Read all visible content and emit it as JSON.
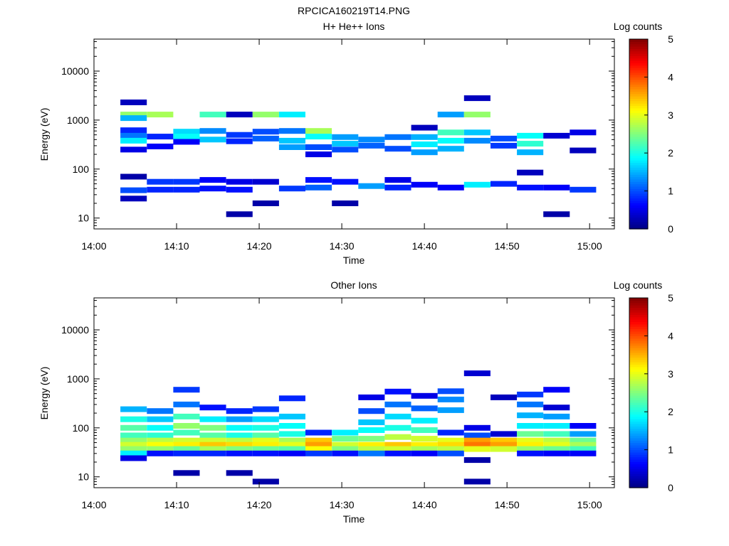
{
  "page_title": "RPCICA160219T14.PNG",
  "chart_data": [
    {
      "type": "heatmap",
      "title": "H+ He++ Ions",
      "xlabel": "Time",
      "ylabel": "Energy (eV)",
      "colorbar_label": "Log counts",
      "x_ticks": [
        "14:00",
        "14:10",
        "14:20",
        "14:30",
        "14:40",
        "14:50",
        "15:00"
      ],
      "y_ticks": [
        "10",
        "100",
        "1000",
        "10000"
      ],
      "colorbar_ticks": [
        "0",
        "1",
        "2",
        "3",
        "4",
        "5"
      ],
      "x_range_minutes": [
        0,
        63
      ],
      "y_scale": "log",
      "y_range": [
        6,
        45000
      ],
      "colorbar_range": [
        0,
        5
      ],
      "grid": false,
      "legend_position": "colorbar-right",
      "cells": [
        {
          "t": 3.2,
          "e": 2300,
          "v": 0.3
        },
        {
          "t": 3.2,
          "e": 1300,
          "v": 2.6
        },
        {
          "t": 3.2,
          "e": 1100,
          "v": 1.5
        },
        {
          "t": 3.2,
          "e": 620,
          "v": 0.8
        },
        {
          "t": 3.2,
          "e": 480,
          "v": 1.2
        },
        {
          "t": 3.2,
          "e": 380,
          "v": 1.8
        },
        {
          "t": 3.2,
          "e": 250,
          "v": 0.5
        },
        {
          "t": 3.2,
          "e": 70,
          "v": 0.2
        },
        {
          "t": 3.2,
          "e": 37,
          "v": 1.0
        },
        {
          "t": 3.2,
          "e": 25,
          "v": 0.3
        },
        {
          "t": 6.4,
          "e": 1300,
          "v": 2.7
        },
        {
          "t": 6.4,
          "e": 460,
          "v": 0.8
        },
        {
          "t": 6.4,
          "e": 290,
          "v": 0.6
        },
        {
          "t": 6.4,
          "e": 55,
          "v": 0.9
        },
        {
          "t": 6.4,
          "e": 38,
          "v": 0.8
        },
        {
          "t": 9.6,
          "e": 580,
          "v": 1.7
        },
        {
          "t": 9.6,
          "e": 460,
          "v": 1.9
        },
        {
          "t": 9.6,
          "e": 360,
          "v": 0.6
        },
        {
          "t": 9.6,
          "e": 55,
          "v": 0.9
        },
        {
          "t": 9.6,
          "e": 38,
          "v": 0.8
        },
        {
          "t": 12.8,
          "e": 1300,
          "v": 2.2
        },
        {
          "t": 12.8,
          "e": 600,
          "v": 1.3
        },
        {
          "t": 12.8,
          "e": 400,
          "v": 1.6
        },
        {
          "t": 12.8,
          "e": 60,
          "v": 0.6
        },
        {
          "t": 12.8,
          "e": 40,
          "v": 0.7
        },
        {
          "t": 16.0,
          "e": 1300,
          "v": 0.3
        },
        {
          "t": 16.0,
          "e": 500,
          "v": 0.9
        },
        {
          "t": 16.0,
          "e": 370,
          "v": 0.8
        },
        {
          "t": 16.0,
          "e": 55,
          "v": 0.5
        },
        {
          "t": 16.0,
          "e": 38,
          "v": 0.7
        },
        {
          "t": 16.0,
          "e": 12,
          "v": 0.2
        },
        {
          "t": 19.2,
          "e": 1300,
          "v": 2.6
        },
        {
          "t": 19.2,
          "e": 580,
          "v": 1.0
        },
        {
          "t": 19.2,
          "e": 420,
          "v": 1.1
        },
        {
          "t": 19.2,
          "e": 55,
          "v": 0.4
        },
        {
          "t": 19.2,
          "e": 20,
          "v": 0.2
        },
        {
          "t": 22.4,
          "e": 1300,
          "v": 1.8
        },
        {
          "t": 22.4,
          "e": 600,
          "v": 1.2
        },
        {
          "t": 22.4,
          "e": 380,
          "v": 1.6
        },
        {
          "t": 22.4,
          "e": 280,
          "v": 1.4
        },
        {
          "t": 22.4,
          "e": 40,
          "v": 0.9
        },
        {
          "t": 25.6,
          "e": 600,
          "v": 2.7
        },
        {
          "t": 25.6,
          "e": 460,
          "v": 1.9
        },
        {
          "t": 25.6,
          "e": 280,
          "v": 1.0
        },
        {
          "t": 25.6,
          "e": 200,
          "v": 0.5
        },
        {
          "t": 25.6,
          "e": 60,
          "v": 0.7
        },
        {
          "t": 25.6,
          "e": 42,
          "v": 1.1
        },
        {
          "t": 28.8,
          "e": 450,
          "v": 1.4
        },
        {
          "t": 28.8,
          "e": 330,
          "v": 1.6
        },
        {
          "t": 28.8,
          "e": 250,
          "v": 1.0
        },
        {
          "t": 28.8,
          "e": 55,
          "v": 0.7
        },
        {
          "t": 28.8,
          "e": 20,
          "v": 0.2
        },
        {
          "t": 32.0,
          "e": 400,
          "v": 1.3
        },
        {
          "t": 32.0,
          "e": 300,
          "v": 1.1
        },
        {
          "t": 32.0,
          "e": 45,
          "v": 1.4
        },
        {
          "t": 35.2,
          "e": 450,
          "v": 1.2
        },
        {
          "t": 35.2,
          "e": 260,
          "v": 1.0
        },
        {
          "t": 35.2,
          "e": 60,
          "v": 0.5
        },
        {
          "t": 35.2,
          "e": 42,
          "v": 0.8
        },
        {
          "t": 38.4,
          "e": 700,
          "v": 0.3
        },
        {
          "t": 38.4,
          "e": 450,
          "v": 1.5
        },
        {
          "t": 38.4,
          "e": 320,
          "v": 1.8
        },
        {
          "t": 38.4,
          "e": 220,
          "v": 1.4
        },
        {
          "t": 38.4,
          "e": 48,
          "v": 0.6
        },
        {
          "t": 41.6,
          "e": 1300,
          "v": 1.4
        },
        {
          "t": 41.6,
          "e": 560,
          "v": 2.2
        },
        {
          "t": 41.6,
          "e": 380,
          "v": 1.9
        },
        {
          "t": 41.6,
          "e": 260,
          "v": 1.5
        },
        {
          "t": 41.6,
          "e": 42,
          "v": 0.6
        },
        {
          "t": 44.8,
          "e": 2800,
          "v": 0.3
        },
        {
          "t": 44.8,
          "e": 1300,
          "v": 2.6
        },
        {
          "t": 44.8,
          "e": 560,
          "v": 1.6
        },
        {
          "t": 44.8,
          "e": 380,
          "v": 1.3
        },
        {
          "t": 44.8,
          "e": 48,
          "v": 1.8
        },
        {
          "t": 48.0,
          "e": 420,
          "v": 1.0
        },
        {
          "t": 48.0,
          "e": 300,
          "v": 0.9
        },
        {
          "t": 48.0,
          "e": 50,
          "v": 0.8
        },
        {
          "t": 51.2,
          "e": 480,
          "v": 1.9
        },
        {
          "t": 51.2,
          "e": 330,
          "v": 2.1
        },
        {
          "t": 51.2,
          "e": 220,
          "v": 1.5
        },
        {
          "t": 51.2,
          "e": 85,
          "v": 0.3
        },
        {
          "t": 51.2,
          "e": 42,
          "v": 0.7
        },
        {
          "t": 54.4,
          "e": 480,
          "v": 0.4
        },
        {
          "t": 54.4,
          "e": 42,
          "v": 0.6
        },
        {
          "t": 54.4,
          "e": 12,
          "v": 0.2
        },
        {
          "t": 57.6,
          "e": 560,
          "v": 0.5
        },
        {
          "t": 57.6,
          "e": 240,
          "v": 0.3
        },
        {
          "t": 57.6,
          "e": 38,
          "v": 0.9
        }
      ]
    },
    {
      "type": "heatmap",
      "title": "Other Ions",
      "xlabel": "Time",
      "ylabel": "Energy (eV)",
      "colorbar_label": "Log counts",
      "x_ticks": [
        "14:00",
        "14:10",
        "14:20",
        "14:30",
        "14:40",
        "14:50",
        "15:00"
      ],
      "y_ticks": [
        "10",
        "100",
        "1000",
        "10000"
      ],
      "colorbar_ticks": [
        "0",
        "1",
        "2",
        "3",
        "4",
        "5"
      ],
      "x_range_minutes": [
        0,
        63
      ],
      "y_scale": "log",
      "y_range": [
        6,
        45000
      ],
      "colorbar_range": [
        0,
        5
      ],
      "grid": false,
      "legend_position": "colorbar-right",
      "cells": [
        {
          "t": 3.2,
          "e": 240,
          "v": 1.5
        },
        {
          "t": 3.2,
          "e": 150,
          "v": 2.0
        },
        {
          "t": 3.2,
          "e": 100,
          "v": 2.3
        },
        {
          "t": 3.2,
          "e": 70,
          "v": 2.2
        },
        {
          "t": 3.2,
          "e": 55,
          "v": 2.6
        },
        {
          "t": 3.2,
          "e": 45,
          "v": 2.9
        },
        {
          "t": 3.2,
          "e": 37,
          "v": 2.6
        },
        {
          "t": 3.2,
          "e": 30,
          "v": 1.8
        },
        {
          "t": 3.2,
          "e": 24,
          "v": 0.5
        },
        {
          "t": 6.4,
          "e": 220,
          "v": 1.2
        },
        {
          "t": 6.4,
          "e": 150,
          "v": 1.6
        },
        {
          "t": 6.4,
          "e": 100,
          "v": 1.9
        },
        {
          "t": 6.4,
          "e": 70,
          "v": 2.1
        },
        {
          "t": 6.4,
          "e": 55,
          "v": 2.8
        },
        {
          "t": 6.4,
          "e": 45,
          "v": 3.1
        },
        {
          "t": 6.4,
          "e": 37,
          "v": 2.6
        },
        {
          "t": 6.4,
          "e": 30,
          "v": 0.7
        },
        {
          "t": 9.6,
          "e": 600,
          "v": 0.9
        },
        {
          "t": 9.6,
          "e": 300,
          "v": 1.2
        },
        {
          "t": 9.6,
          "e": 170,
          "v": 2.2
        },
        {
          "t": 9.6,
          "e": 110,
          "v": 2.6
        },
        {
          "t": 9.6,
          "e": 80,
          "v": 2.2
        },
        {
          "t": 9.6,
          "e": 55,
          "v": 2.9
        },
        {
          "t": 9.6,
          "e": 45,
          "v": 3.2
        },
        {
          "t": 9.6,
          "e": 37,
          "v": 2.4
        },
        {
          "t": 9.6,
          "e": 30,
          "v": 0.8
        },
        {
          "t": 9.6,
          "e": 12,
          "v": 0.2
        },
        {
          "t": 12.8,
          "e": 260,
          "v": 0.7
        },
        {
          "t": 12.8,
          "e": 150,
          "v": 1.8
        },
        {
          "t": 12.8,
          "e": 100,
          "v": 2.5
        },
        {
          "t": 12.8,
          "e": 70,
          "v": 2.3
        },
        {
          "t": 12.8,
          "e": 55,
          "v": 2.9
        },
        {
          "t": 12.8,
          "e": 45,
          "v": 3.4
        },
        {
          "t": 12.8,
          "e": 37,
          "v": 2.7
        },
        {
          "t": 12.8,
          "e": 30,
          "v": 0.8
        },
        {
          "t": 16.0,
          "e": 220,
          "v": 0.8
        },
        {
          "t": 16.0,
          "e": 150,
          "v": 1.4
        },
        {
          "t": 16.0,
          "e": 100,
          "v": 1.9
        },
        {
          "t": 16.0,
          "e": 70,
          "v": 2.0
        },
        {
          "t": 16.0,
          "e": 55,
          "v": 2.8
        },
        {
          "t": 16.0,
          "e": 45,
          "v": 3.3
        },
        {
          "t": 16.0,
          "e": 37,
          "v": 2.5
        },
        {
          "t": 16.0,
          "e": 30,
          "v": 0.7
        },
        {
          "t": 16.0,
          "e": 12,
          "v": 0.2
        },
        {
          "t": 19.2,
          "e": 240,
          "v": 0.9
        },
        {
          "t": 19.2,
          "e": 150,
          "v": 1.7
        },
        {
          "t": 19.2,
          "e": 100,
          "v": 2.0
        },
        {
          "t": 19.2,
          "e": 70,
          "v": 2.3
        },
        {
          "t": 19.2,
          "e": 55,
          "v": 3.0
        },
        {
          "t": 19.2,
          "e": 45,
          "v": 3.2
        },
        {
          "t": 19.2,
          "e": 37,
          "v": 2.4
        },
        {
          "t": 19.2,
          "e": 30,
          "v": 0.7
        },
        {
          "t": 19.2,
          "e": 8,
          "v": 0.2
        },
        {
          "t": 22.4,
          "e": 400,
          "v": 0.8
        },
        {
          "t": 22.4,
          "e": 170,
          "v": 1.6
        },
        {
          "t": 22.4,
          "e": 110,
          "v": 1.9
        },
        {
          "t": 22.4,
          "e": 75,
          "v": 2.0
        },
        {
          "t": 22.4,
          "e": 55,
          "v": 2.7
        },
        {
          "t": 22.4,
          "e": 45,
          "v": 3.0
        },
        {
          "t": 22.4,
          "e": 37,
          "v": 2.3
        },
        {
          "t": 22.4,
          "e": 30,
          "v": 0.6
        },
        {
          "t": 25.6,
          "e": 80,
          "v": 0.8
        },
        {
          "t": 25.6,
          "e": 55,
          "v": 3.4
        },
        {
          "t": 25.6,
          "e": 45,
          "v": 3.6
        },
        {
          "t": 25.6,
          "e": 37,
          "v": 3.1
        },
        {
          "t": 25.6,
          "e": 30,
          "v": 0.9
        },
        {
          "t": 28.8,
          "e": 80,
          "v": 1.8
        },
        {
          "t": 28.8,
          "e": 60,
          "v": 2.4
        },
        {
          "t": 28.8,
          "e": 45,
          "v": 2.9
        },
        {
          "t": 28.8,
          "e": 37,
          "v": 2.5
        },
        {
          "t": 28.8,
          "e": 30,
          "v": 0.7
        },
        {
          "t": 32.0,
          "e": 420,
          "v": 0.5
        },
        {
          "t": 32.0,
          "e": 220,
          "v": 1.0
        },
        {
          "t": 32.0,
          "e": 130,
          "v": 1.6
        },
        {
          "t": 32.0,
          "e": 90,
          "v": 1.9
        },
        {
          "t": 32.0,
          "e": 60,
          "v": 2.5
        },
        {
          "t": 32.0,
          "e": 45,
          "v": 3.2
        },
        {
          "t": 32.0,
          "e": 37,
          "v": 2.8
        },
        {
          "t": 32.0,
          "e": 30,
          "v": 1.2
        },
        {
          "t": 35.2,
          "e": 550,
          "v": 0.7
        },
        {
          "t": 35.2,
          "e": 300,
          "v": 1.2
        },
        {
          "t": 35.2,
          "e": 170,
          "v": 1.7
        },
        {
          "t": 35.2,
          "e": 100,
          "v": 2.0
        },
        {
          "t": 35.2,
          "e": 65,
          "v": 2.8
        },
        {
          "t": 35.2,
          "e": 45,
          "v": 3.4
        },
        {
          "t": 35.2,
          "e": 37,
          "v": 2.9
        },
        {
          "t": 35.2,
          "e": 30,
          "v": 0.7
        },
        {
          "t": 38.4,
          "e": 450,
          "v": 0.5
        },
        {
          "t": 38.4,
          "e": 250,
          "v": 1.1
        },
        {
          "t": 38.4,
          "e": 140,
          "v": 1.8
        },
        {
          "t": 38.4,
          "e": 90,
          "v": 2.2
        },
        {
          "t": 38.4,
          "e": 60,
          "v": 2.9
        },
        {
          "t": 38.4,
          "e": 45,
          "v": 3.2
        },
        {
          "t": 38.4,
          "e": 37,
          "v": 2.7
        },
        {
          "t": 38.4,
          "e": 30,
          "v": 0.6
        },
        {
          "t": 41.6,
          "e": 560,
          "v": 1.0
        },
        {
          "t": 41.6,
          "e": 380,
          "v": 1.3
        },
        {
          "t": 41.6,
          "e": 230,
          "v": 1.4
        },
        {
          "t": 41.6,
          "e": 80,
          "v": 0.8
        },
        {
          "t": 41.6,
          "e": 55,
          "v": 3.0
        },
        {
          "t": 41.6,
          "e": 45,
          "v": 3.3
        },
        {
          "t": 41.6,
          "e": 37,
          "v": 2.8
        },
        {
          "t": 41.6,
          "e": 30,
          "v": 1.0
        },
        {
          "t": 44.8,
          "e": 1300,
          "v": 0.4
        },
        {
          "t": 44.8,
          "e": 100,
          "v": 0.5
        },
        {
          "t": 44.8,
          "e": 70,
          "v": 1.0
        },
        {
          "t": 44.8,
          "e": 55,
          "v": 3.6
        },
        {
          "t": 44.8,
          "e": 45,
          "v": 3.8
        },
        {
          "t": 44.8,
          "e": 37,
          "v": 3.0
        },
        {
          "t": 44.8,
          "e": 22,
          "v": 0.2
        },
        {
          "t": 44.8,
          "e": 8,
          "v": 0.2
        },
        {
          "t": 48.0,
          "e": 420,
          "v": 0.3
        },
        {
          "t": 48.0,
          "e": 75,
          "v": 0.4
        },
        {
          "t": 48.0,
          "e": 55,
          "v": 3.4
        },
        {
          "t": 48.0,
          "e": 45,
          "v": 3.6
        },
        {
          "t": 48.0,
          "e": 37,
          "v": 2.9
        },
        {
          "t": 51.2,
          "e": 480,
          "v": 0.9
        },
        {
          "t": 51.2,
          "e": 300,
          "v": 1.2
        },
        {
          "t": 51.2,
          "e": 180,
          "v": 1.5
        },
        {
          "t": 51.2,
          "e": 110,
          "v": 1.8
        },
        {
          "t": 51.2,
          "e": 75,
          "v": 2.4
        },
        {
          "t": 51.2,
          "e": 55,
          "v": 3.0
        },
        {
          "t": 51.2,
          "e": 45,
          "v": 3.2
        },
        {
          "t": 51.2,
          "e": 37,
          "v": 2.6
        },
        {
          "t": 51.2,
          "e": 30,
          "v": 0.7
        },
        {
          "t": 54.4,
          "e": 600,
          "v": 0.6
        },
        {
          "t": 54.4,
          "e": 260,
          "v": 0.4
        },
        {
          "t": 54.4,
          "e": 170,
          "v": 1.4
        },
        {
          "t": 54.4,
          "e": 110,
          "v": 1.8
        },
        {
          "t": 54.4,
          "e": 75,
          "v": 2.2
        },
        {
          "t": 54.4,
          "e": 55,
          "v": 2.8
        },
        {
          "t": 54.4,
          "e": 45,
          "v": 3.0
        },
        {
          "t": 54.4,
          "e": 37,
          "v": 2.4
        },
        {
          "t": 54.4,
          "e": 30,
          "v": 0.6
        },
        {
          "t": 57.6,
          "e": 110,
          "v": 0.6
        },
        {
          "t": 57.6,
          "e": 75,
          "v": 1.4
        },
        {
          "t": 57.6,
          "e": 55,
          "v": 2.4
        },
        {
          "t": 57.6,
          "e": 45,
          "v": 2.7
        },
        {
          "t": 57.6,
          "e": 37,
          "v": 2.2
        },
        {
          "t": 57.6,
          "e": 30,
          "v": 0.6
        }
      ]
    }
  ]
}
